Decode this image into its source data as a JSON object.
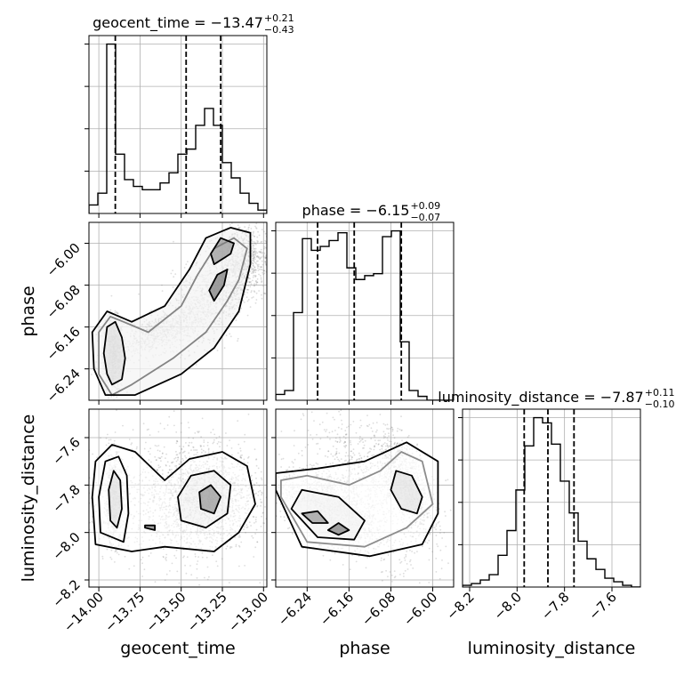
{
  "chart_data": {
    "type": "corner",
    "parameters": [
      "geocent_time",
      "phase",
      "luminosity_distance"
    ],
    "titles": [
      {
        "param": "geocent_time",
        "name": "geocent_time = ",
        "median": "−13.47",
        "plus": "+0.21",
        "minus": "−0.43"
      },
      {
        "param": "phase",
        "name": "phase = ",
        "median": "−6.15",
        "plus": "+0.09",
        "minus": "−0.07"
      },
      {
        "param": "luminosity_distance",
        "name": "luminosity_distance = ",
        "median": "−7.87",
        "plus": "+0.11",
        "minus": "−0.10"
      }
    ],
    "axis_labels": {
      "x": [
        "geocent_time",
        "phase",
        "luminosity_distance"
      ],
      "y": [
        "phase",
        "luminosity_distance"
      ]
    },
    "ranges": {
      "geocent_time": [
        -14.06,
        -12.98
      ],
      "phase": [
        -6.3,
        -5.96
      ],
      "luminosity_distance": [
        -8.23,
        -7.48
      ]
    },
    "ticks": {
      "geocent_time": [
        -14.0,
        -13.75,
        -13.5,
        -13.25,
        -13.0
      ],
      "phase": [
        -6.24,
        -6.16,
        -6.08,
        -6.0
      ],
      "luminosity_distance": [
        -8.2,
        -8.0,
        -7.8,
        -7.6
      ]
    },
    "tick_labels": {
      "geocent_time": [
        "−14.00",
        "−13.75",
        "−13.50",
        "−13.25",
        "−13.00"
      ],
      "phase": [
        "−6.24",
        "−6.16",
        "−6.08",
        "−6.00"
      ],
      "luminosity_distance": [
        "−8.2",
        "−8.0",
        "−7.8",
        "−7.6"
      ]
    },
    "quantiles": {
      "geocent_time": [
        -13.9,
        -13.47,
        -13.26
      ],
      "phase": [
        -6.22,
        -6.15,
        -6.06
      ],
      "luminosity_distance": [
        -7.97,
        -7.87,
        -7.76
      ]
    },
    "histograms": {
      "geocent_time": {
        "edges": [
          -14.06,
          -14.006,
          -13.952,
          -13.898,
          -13.844,
          -13.79,
          -13.736,
          -13.682,
          -13.628,
          -13.574,
          -13.52,
          -13.466,
          -13.412,
          -13.358,
          -13.304,
          -13.25,
          -13.196,
          -13.142,
          -13.088,
          -13.034,
          -12.98
        ],
        "counts": [
          0.05,
          0.12,
          1.0,
          0.35,
          0.2,
          0.16,
          0.14,
          0.14,
          0.18,
          0.24,
          0.35,
          0.38,
          0.52,
          0.62,
          0.52,
          0.3,
          0.21,
          0.12,
          0.06,
          0.02
        ]
      },
      "phase": {
        "edges": [
          -6.3,
          -6.283,
          -6.266,
          -6.249,
          -6.232,
          -6.215,
          -6.198,
          -6.181,
          -6.164,
          -6.147,
          -6.13,
          -6.113,
          -6.096,
          -6.079,
          -6.062,
          -6.045,
          -6.028,
          -6.011,
          -5.994,
          -5.977,
          -5.96
        ],
        "counts": [
          0.03,
          0.05,
          0.45,
          0.83,
          0.77,
          0.79,
          0.82,
          0.86,
          0.68,
          0.62,
          0.64,
          0.65,
          0.84,
          0.87,
          0.3,
          0.05,
          0.02,
          0.0,
          0.0,
          0.0
        ]
      },
      "luminosity_distance": {
        "edges": [
          -8.23,
          -8.1925,
          -8.155,
          -8.1175,
          -8.08,
          -8.0425,
          -8.005,
          -7.9675,
          -7.93,
          -7.8925,
          -7.855,
          -7.8175,
          -7.78,
          -7.7425,
          -7.705,
          -7.6675,
          -7.63,
          -7.5925,
          -7.555,
          -7.5175,
          -7.48
        ],
        "counts": [
          0.01,
          0.02,
          0.04,
          0.07,
          0.18,
          0.32,
          0.55,
          0.8,
          0.96,
          0.93,
          0.81,
          0.6,
          0.42,
          0.26,
          0.16,
          0.1,
          0.05,
          0.03,
          0.01,
          0.0
        ]
      }
    },
    "grid": true,
    "marginal_y_ticks": "unlabeled"
  }
}
